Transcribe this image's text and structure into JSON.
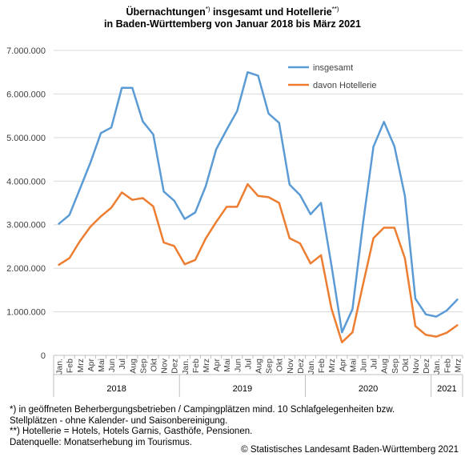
{
  "title": {
    "line1_a": "Übernachtungen",
    "line1_b": "*)",
    "line1_c": " insgesamt und Hotellerie",
    "line1_d": "**)",
    "line2": "in Baden-Württemberg von Januar 2018 bis März 2021"
  },
  "chart_data": {
    "type": "line",
    "ylim": [
      0,
      7000000
    ],
    "yticks": [
      "0",
      "1.000.000",
      "2.000.000",
      "3.000.000",
      "4.000.000",
      "5.000.000",
      "6.000.000",
      "7.000.000"
    ],
    "grid": true,
    "legend": "top-center",
    "categories": [
      "Jan.",
      "Feb",
      "Mrz",
      "Apr",
      "Mai",
      "Jun",
      "Jul",
      "Aug",
      "Sep",
      "Okt",
      "Nov",
      "Dez",
      "Jan.",
      "Feb",
      "Mrz",
      "Apr",
      "Mai",
      "Jun",
      "Jul",
      "Aug",
      "Sep",
      "Okt",
      "Nov",
      "Dez",
      "Jan.",
      "Feb",
      "Mrz",
      "Apr",
      "Mai",
      "Jun",
      "Jul",
      "Aug",
      "Sep",
      "Okt",
      "Nov",
      "Dez",
      "Jan.",
      "Feb",
      "Mrz"
    ],
    "years": [
      {
        "label": "2018",
        "count": 12
      },
      {
        "label": "2019",
        "count": 12
      },
      {
        "label": "2020",
        "count": 12
      },
      {
        "label": "2021",
        "count": 3
      }
    ],
    "series": [
      {
        "name": "insgesamt",
        "color": "#5b9bd5",
        "values": [
          3020000,
          3220000,
          3820000,
          4420000,
          5100000,
          5230000,
          6140000,
          6140000,
          5370000,
          5070000,
          3760000,
          3550000,
          3130000,
          3280000,
          3880000,
          4730000,
          5180000,
          5610000,
          6500000,
          6420000,
          5550000,
          5340000,
          3920000,
          3680000,
          3240000,
          3500000,
          2060000,
          530000,
          1060000,
          3020000,
          4790000,
          5360000,
          4800000,
          3660000,
          1300000,
          940000,
          890000,
          1030000,
          1280000
        ]
      },
      {
        "name": "davon Hotellerie",
        "color": "#ed7d31",
        "values": [
          2080000,
          2230000,
          2620000,
          2950000,
          3190000,
          3390000,
          3740000,
          3570000,
          3610000,
          3420000,
          2590000,
          2510000,
          2090000,
          2190000,
          2680000,
          3060000,
          3410000,
          3410000,
          3930000,
          3660000,
          3630000,
          3500000,
          2690000,
          2570000,
          2110000,
          2300000,
          1070000,
          300000,
          530000,
          1620000,
          2690000,
          2930000,
          2930000,
          2230000,
          670000,
          470000,
          430000,
          520000,
          690000
        ]
      }
    ]
  },
  "footnotes": [
    "*) in geöffneten Beherbergungsbetrieben / Campingplätzen  mind. 10 Schlafgelegenheiten bzw.",
    "Stellplätzen - ohne Kalender- und Saisonbereinigung.",
    "**) Hotellerie = Hotels, Hotels Garnis, Gasthöfe, Pensionen.",
    "Datenquelle: Monatserhebung im Tourismus."
  ],
  "copyright": "© Statistisches Landesamt Baden-Württemberg 2021"
}
